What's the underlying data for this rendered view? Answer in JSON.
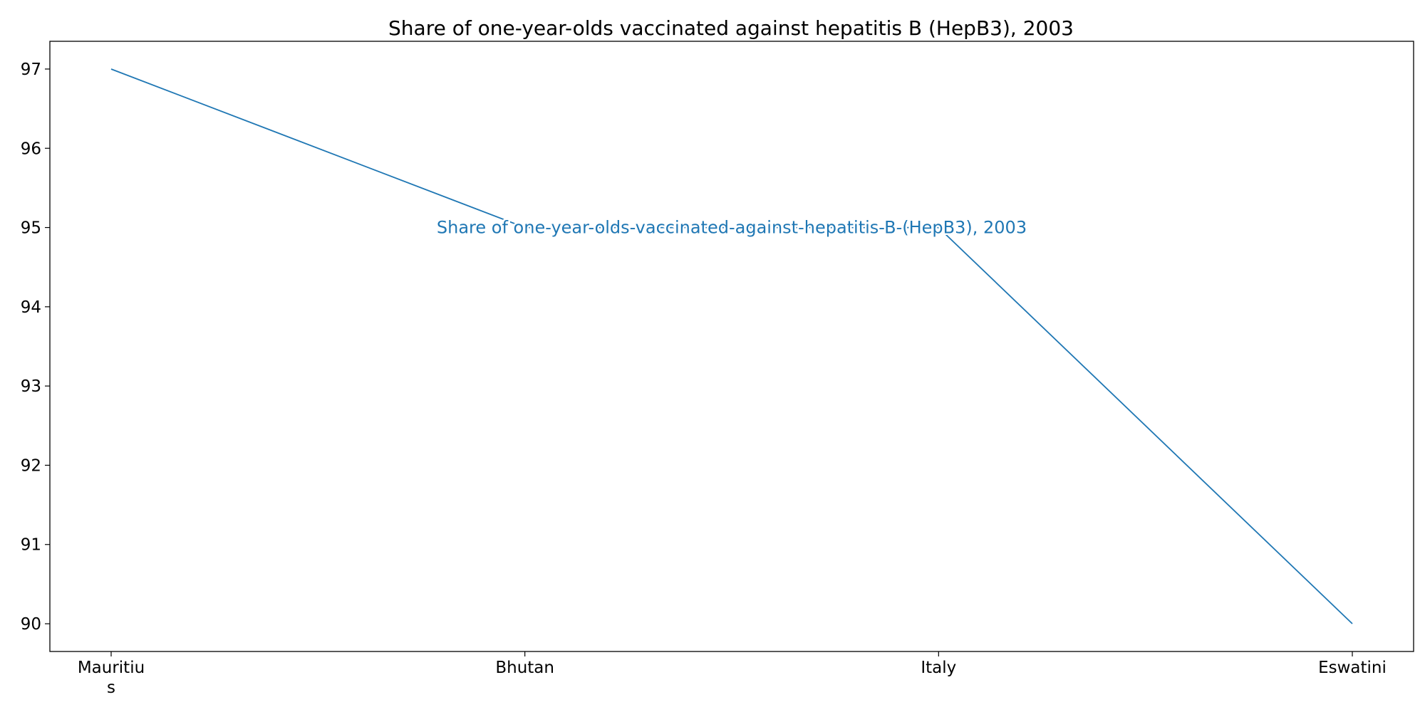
{
  "chart_data": {
    "type": "line",
    "title": "Share of one-year-olds vaccinated against hepatitis B (HepB3), 2003",
    "xlabel": "",
    "ylabel": "",
    "categories": [
      "Mauritius",
      "Bhutan",
      "Italy",
      "Eswatini"
    ],
    "category_labels": [
      [
        "Mauritiu",
        "s"
      ],
      [
        "Bhutan"
      ],
      [
        "Italy"
      ],
      [
        "Eswatini"
      ]
    ],
    "series": [
      {
        "name": "Share of one-year-olds-vaccinated-against-hepatitis-B-(HepB3), 2003",
        "values": [
          97,
          95,
          95,
          90
        ],
        "color": "#1f77b4"
      }
    ],
    "ylim": [
      89.65,
      97.35
    ],
    "yticks": [
      90,
      91,
      92,
      93,
      94,
      95,
      96,
      97
    ],
    "grid": false,
    "legend": "none"
  }
}
